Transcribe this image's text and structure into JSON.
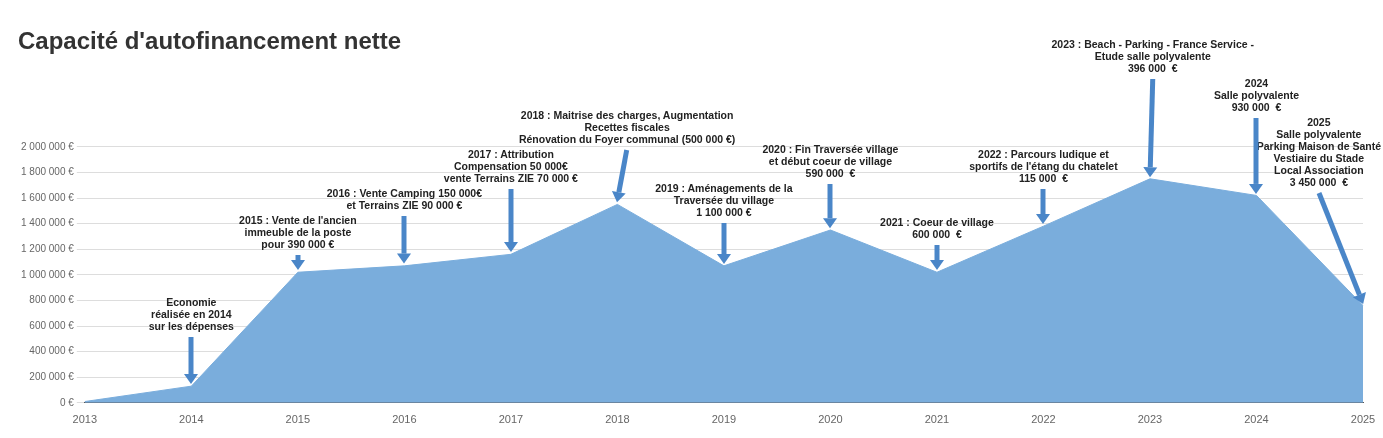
{
  "chart_data": {
    "type": "area",
    "title": "Capacité d'autofinancement nette",
    "categories": [
      "2013",
      "2014",
      "2015",
      "2016",
      "2017",
      "2018",
      "2019",
      "2020",
      "2021",
      "2022",
      "2023",
      "2024",
      "2025"
    ],
    "series": [
      {
        "color": "#7aaddc",
        "values": [
          10000,
          130000,
          1020000,
          1070000,
          1160000,
          1550000,
          1070000,
          1350000,
          1020000,
          1380000,
          1750000,
          1620000,
          760000
        ]
      }
    ],
    "ylim": [
      0,
      2000000
    ],
    "yticks": [
      {
        "value": 0,
        "label": "0 €"
      },
      {
        "value": 200000,
        "label": "200 000 €"
      },
      {
        "value": 400000,
        "label": "400 000 €"
      },
      {
        "value": 600000,
        "label": "600 000 €"
      },
      {
        "value": 800000,
        "label": "800 000 €"
      },
      {
        "value": 1000000,
        "label": "1 000 000 €"
      },
      {
        "value": 1200000,
        "label": "1 200 000 €"
      },
      {
        "value": 1400000,
        "label": "1 400 000 €"
      },
      {
        "value": 1600000,
        "label": "1 600 000 €"
      },
      {
        "value": 1800000,
        "label": "1 800 000 €"
      },
      {
        "value": 2000000,
        "label": "2 000 000 €"
      }
    ],
    "grid": "y",
    "legend": false,
    "annotations": [
      "Economie\nréalisée en 2014\nsur les dépenses",
      "2015 : Vente de l'ancien\nimmeuble de la poste\npour 390 000 €",
      "2016 : Vente Camping 150 000€\net Terrains ZIE 90 000 €",
      "2017 : Attribution\nCompensation 50 000€\nvente Terrains ZIE 70 000 €",
      "2018 : Maitrise des charges, Augmentation\nRecettes fiscales\nRénovation du Foyer communal (500 000 €)",
      "2019 : Aménagements de la\nTraversée du village\n1 100 000 €",
      "2020 : Fin Traversée village\net début coeur de village\n590 000  €",
      "2021 : Coeur de village\n600 000  €",
      "2022 : Parcours ludique et\nsportifs de l'étang du chatelet\n115 000  €",
      "2023 : Beach - Parking - France Service -\nEtude salle polyvalente\n396 000  €",
      "2024\nSalle polyvalente\n930 000  €",
      "2025\nSalle polyvalente\nParking Maison de Santé\nVestiaire du Stade\nLocal Association\n3 450 000  €"
    ]
  }
}
